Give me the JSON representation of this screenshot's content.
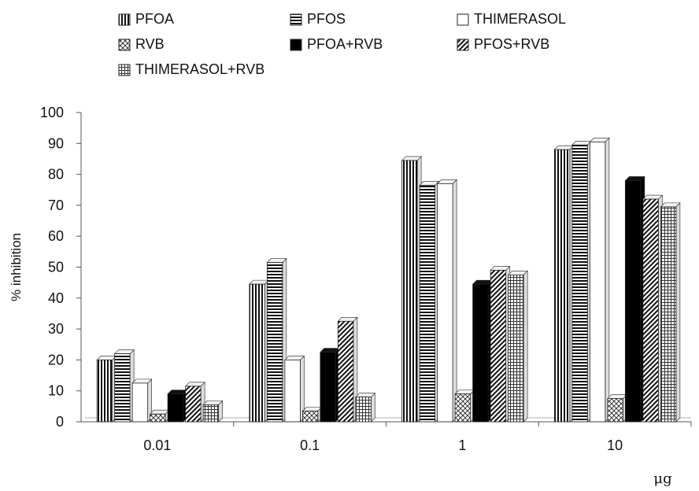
{
  "chart_data": {
    "type": "bar",
    "categories": [
      "0.01",
      "0.1",
      "1",
      "10"
    ],
    "xlabel": "",
    "unit_label": "μg",
    "ylabel": "% inhibition",
    "ylim": [
      0,
      100
    ],
    "yticks": [
      0,
      10,
      20,
      30,
      40,
      50,
      60,
      70,
      80,
      90,
      100
    ],
    "grid": false,
    "legend_position": "top",
    "series": [
      {
        "name": "PFOA",
        "pattern": "vertical-lines",
        "values": [
          20,
          44.5,
          84.5,
          88
        ]
      },
      {
        "name": "PFOS",
        "pattern": "horizontal-lines",
        "values": [
          22,
          51.5,
          76.5,
          89.5
        ]
      },
      {
        "name": "THIMERASOL",
        "pattern": "white",
        "values": [
          12.5,
          20,
          77,
          90.5
        ]
      },
      {
        "name": "RVB",
        "pattern": "crosshatch-diagonal",
        "values": [
          2.5,
          3.5,
          9,
          7.5
        ]
      },
      {
        "name": "PFOA+RVB",
        "pattern": "solid-black",
        "values": [
          9,
          22.5,
          44.5,
          78
        ]
      },
      {
        "name": "PFOS+RVB",
        "pattern": "diagonal-lines",
        "values": [
          11.5,
          32.5,
          49,
          72
        ]
      },
      {
        "name": "THIMERASOL+RVB",
        "pattern": "grid",
        "values": [
          5.5,
          8,
          47.5,
          69.5
        ]
      }
    ]
  }
}
